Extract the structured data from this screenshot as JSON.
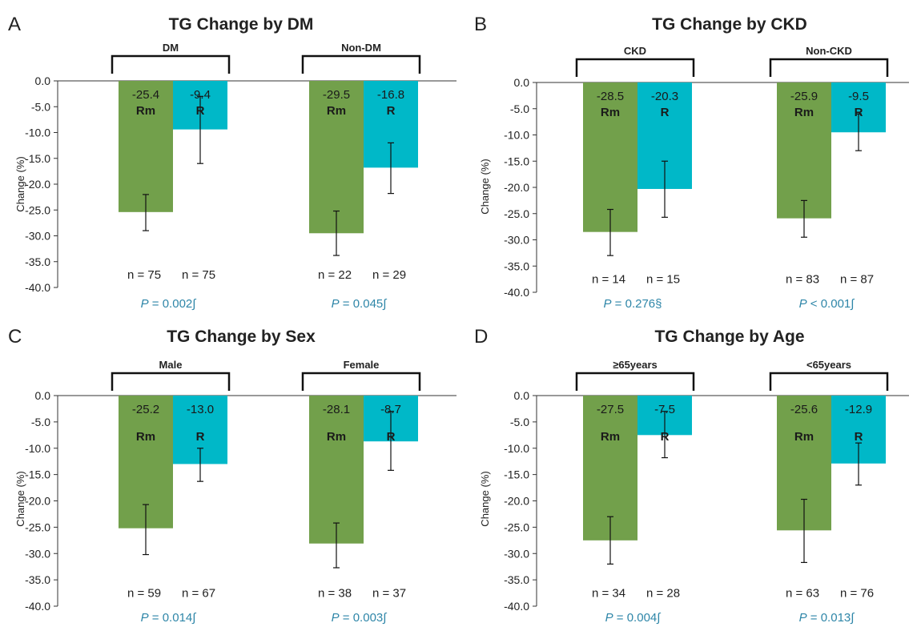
{
  "colors": {
    "rm": "#72a04b",
    "r": "#00b8c8",
    "p_value": "#2e86a8",
    "axis": "#333333",
    "text": "#222222"
  },
  "chart_data": [
    {
      "type": "bar",
      "panel_letter": "A",
      "title": "TG Change by DM",
      "ylabel": "Change (%)",
      "ylim": [
        -40,
        0
      ],
      "yticks": [
        "0.0",
        "-5.0",
        "-10.0",
        "-15.0",
        "-20.0",
        "-25.0",
        "-30.0",
        "-35.0",
        "-40.0"
      ],
      "groups": [
        {
          "label": "DM",
          "bars": [
            {
              "name": "Rm",
              "value": -25.4,
              "err_low": -29.0,
              "err_high": -22.0,
              "value_label": "-25.4",
              "n_label": "n = 75"
            },
            {
              "name": "R",
              "value": -9.4,
              "err_low": -16.0,
              "err_high": -3.0,
              "value_label": "-9.4",
              "n_label": "n = 75"
            }
          ],
          "p_symbol": "P",
          "p_rest": " =  0.002∫"
        },
        {
          "label": "Non-DM",
          "bars": [
            {
              "name": "Rm",
              "value": -29.5,
              "err_low": -33.8,
              "err_high": -25.2,
              "value_label": "-29.5",
              "n_label": "n = 22"
            },
            {
              "name": "R",
              "value": -16.8,
              "err_low": -21.8,
              "err_high": -12.0,
              "value_label": "-16.8",
              "n_label": "n = 29"
            }
          ],
          "p_symbol": "P",
          "p_rest": " =  0.045∫"
        }
      ]
    },
    {
      "type": "bar",
      "panel_letter": "B",
      "title": "TG Change by CKD",
      "ylabel": "Change (%)",
      "ylim": [
        -40,
        0
      ],
      "yticks": [
        "0.0",
        "-5.0",
        "-10.0",
        "-15.0",
        "-20.0",
        "-25.0",
        "-30.0",
        "-35.0",
        "-40.0"
      ],
      "groups": [
        {
          "label": "CKD",
          "bars": [
            {
              "name": "Rm",
              "value": -28.5,
              "err_low": -33.0,
              "err_high": -24.2,
              "value_label": "-28.5",
              "n_label": "n = 14"
            },
            {
              "name": "R",
              "value": -20.3,
              "err_low": -25.7,
              "err_high": -15.0,
              "value_label": "-20.3",
              "n_label": "n = 15"
            }
          ],
          "p_symbol": "P",
          "p_rest": " = 0.276§"
        },
        {
          "label": "Non-CKD",
          "bars": [
            {
              "name": "Rm",
              "value": -25.9,
              "err_low": -29.5,
              "err_high": -22.5,
              "value_label": "-25.9",
              "n_label": "n = 83"
            },
            {
              "name": "R",
              "value": -9.5,
              "err_low": -13.0,
              "err_high": -6.0,
              "value_label": "-9.5",
              "n_label": "n = 87"
            }
          ],
          "p_symbol": "P",
          "p_rest": " < 0.001∫"
        }
      ]
    },
    {
      "type": "bar",
      "panel_letter": "C",
      "title": "TG Change by Sex",
      "ylabel": "Change (%)",
      "ylim": [
        -40,
        0
      ],
      "yticks": [
        "0.0",
        "-5.0",
        "-10.0",
        "-15.0",
        "-20.0",
        "-25.0",
        "-30.0",
        "-35.0",
        "-40.0"
      ],
      "groups": [
        {
          "label": "Male",
          "bars": [
            {
              "name": "Rm",
              "value": -25.2,
              "err_low": -30.2,
              "err_high": -20.7,
              "value_label": "-25.2",
              "n_label": "n = 59"
            },
            {
              "name": "R",
              "value": -13.0,
              "err_low": -16.3,
              "err_high": -10.0,
              "value_label": "-13.0",
              "n_label": "n = 67"
            }
          ],
          "p_symbol": "P",
          "p_rest": " = 0.014∫"
        },
        {
          "label": "Female",
          "bars": [
            {
              "name": "Rm",
              "value": -28.1,
              "err_low": -32.7,
              "err_high": -24.2,
              "value_label": "-28.1",
              "n_label": "n = 38"
            },
            {
              "name": "R",
              "value": -8.7,
              "err_low": -14.2,
              "err_high": -3.0,
              "value_label": "-8.7",
              "n_label": "n = 37"
            }
          ],
          "p_symbol": "P",
          "p_rest": " = 0.003∫"
        }
      ]
    },
    {
      "type": "bar",
      "panel_letter": "D",
      "title": "TG Change by Age",
      "ylabel": "Change (%)",
      "ylim": [
        -40,
        0
      ],
      "yticks": [
        "0.0",
        "-5.0",
        "-10.0",
        "-15.0",
        "-20.0",
        "-25.0",
        "-30.0",
        "-35.0",
        "-40.0"
      ],
      "groups": [
        {
          "label": "≥65years",
          "bars": [
            {
              "name": "Rm",
              "value": -27.5,
              "err_low": -32.0,
              "err_high": -23.0,
              "value_label": "-27.5",
              "n_label": "n = 34"
            },
            {
              "name": "R",
              "value": -7.5,
              "err_low": -11.8,
              "err_high": -3.0,
              "value_label": "-7.5",
              "n_label": "n = 28"
            }
          ],
          "p_symbol": "P",
          "p_rest": " =  0.004∫"
        },
        {
          "label": "<65years",
          "bars": [
            {
              "name": "Rm",
              "value": -25.6,
              "err_low": -31.7,
              "err_high": -19.7,
              "value_label": "-25.6",
              "n_label": "n = 63"
            },
            {
              "name": "R",
              "value": -12.9,
              "err_low": -17.0,
              "err_high": -9.0,
              "value_label": "-12.9",
              "n_label": "n = 76"
            }
          ],
          "p_symbol": "P",
          "p_rest": " = 0.013∫"
        }
      ]
    }
  ]
}
